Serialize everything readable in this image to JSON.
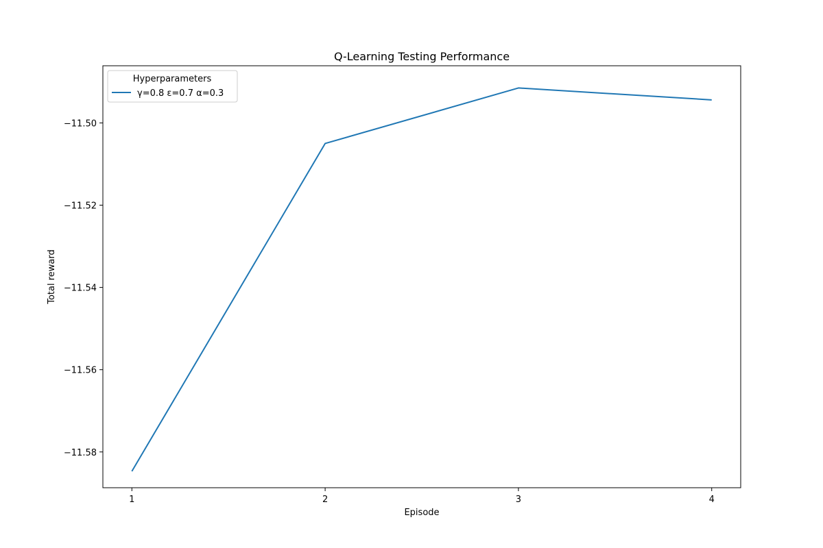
{
  "chart_data": {
    "type": "line",
    "title": "Q-Learning Testing Performance",
    "xlabel": "Episode",
    "ylabel": "Total reward",
    "x": [
      1,
      2,
      3,
      4
    ],
    "xticks": [
      1,
      2,
      3,
      4
    ],
    "xtick_labels": [
      "1",
      "2",
      "3",
      "4"
    ],
    "xlim": [
      0.85,
      4.15
    ],
    "yticks": [
      -11.5,
      -11.52,
      -11.54,
      -11.56,
      -11.58
    ],
    "ytick_labels": [
      "−11.50",
      "−11.52",
      "−11.54",
      "−11.56",
      "−11.58"
    ],
    "ylim": [
      -11.5887,
      -11.4861
    ],
    "grid": false,
    "legend": {
      "title": "Hyperparameters",
      "placement": "top-left"
    },
    "series": [
      {
        "name": "γ=0.8 ε=0.7 α=0.3",
        "color": "#1f77b4",
        "values": [
          -11.5847,
          -11.505,
          -11.4915,
          -11.4944
        ]
      }
    ]
  }
}
